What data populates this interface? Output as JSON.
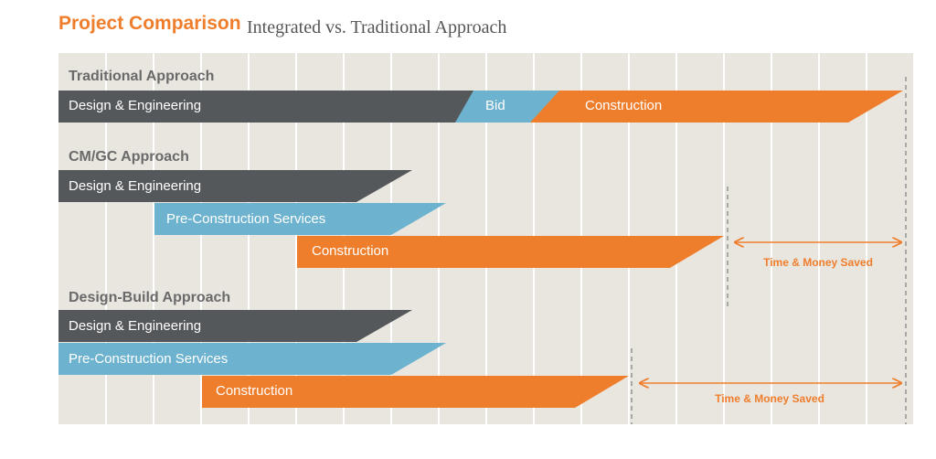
{
  "header": {
    "title": "Project Comparison",
    "subtitle": "Integrated vs. Traditional Approach"
  },
  "colors": {
    "panel_bg": "#e9e6e0",
    "grid_line": "#ffffff",
    "design": "#55585a",
    "precon": "#6db3cf",
    "construction": "#ef7e2c",
    "section_label": "#6a6a6a"
  },
  "sections": {
    "traditional": {
      "label": "Traditional Approach",
      "design": "Design & Engineering",
      "bid": "Bid",
      "construction": "Construction"
    },
    "cmgc": {
      "label": "CM/GC Approach",
      "design": "Design & Engineering",
      "precon": "Pre-Construction Services",
      "construction": "Construction",
      "saved": "Time & Money Saved"
    },
    "designbuild": {
      "label": "Design-Build Approach",
      "design": "Design & Engineering",
      "precon": "Pre-Construction Services",
      "construction": "Construction",
      "saved": "Time & Money Saved"
    }
  }
}
